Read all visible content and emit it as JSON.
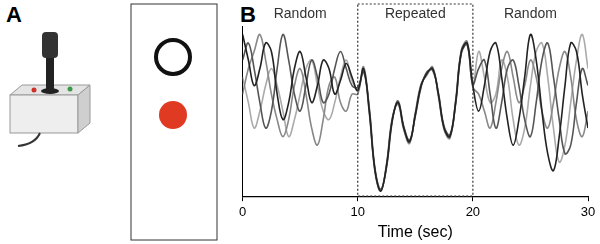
{
  "panel_labels": [
    "A",
    "B"
  ],
  "chart_data": {
    "type": "line",
    "x": [
      0,
      0.5,
      1,
      1.5,
      2,
      2.5,
      3,
      3.5,
      4,
      4.5,
      5,
      5.5,
      6,
      6.5,
      7,
      7.5,
      8,
      8.5,
      9,
      9.5,
      10,
      10.5,
      11,
      11.5,
      12,
      12.5,
      13,
      13.5,
      14,
      14.5,
      15,
      15.5,
      16,
      16.5,
      17,
      17.5,
      18,
      18.5,
      19,
      19.5,
      20,
      20.5,
      21,
      21.5,
      22,
      22.5,
      23,
      23.5,
      24,
      24.5,
      25,
      25.5,
      26,
      26.5,
      27,
      27.5,
      28,
      28.5,
      29,
      29.5,
      30
    ],
    "series": [
      {
        "color": "#222222",
        "values": [
          9.5,
          8.0,
          6.5,
          7.5,
          9.0,
          8.5,
          6.0,
          4.5,
          5.5,
          7.5,
          8.5,
          7.0,
          5.5,
          6.5,
          8.0,
          7.5,
          6.0,
          6.8,
          7.8,
          7.0,
          6.2,
          7.5,
          5.0,
          1.5,
          0.3,
          1.8,
          4.5,
          5.5,
          4.0,
          3.2,
          4.8,
          6.5,
          7.2,
          7.5,
          6.0,
          4.0,
          3.5,
          5.5,
          8.5,
          9.0,
          6.5,
          5.0,
          6.5,
          8.5,
          9.0,
          7.0,
          4.5,
          3.0,
          4.5,
          7.0,
          9.5,
          8.0,
          5.0,
          2.5,
          1.5,
          3.5,
          6.5,
          9.0,
          8.5,
          6.0,
          4.0
        ]
      },
      {
        "color": "#555555",
        "values": [
          8.0,
          9.0,
          7.5,
          5.5,
          4.0,
          5.0,
          7.5,
          9.5,
          8.0,
          6.0,
          5.0,
          6.5,
          8.0,
          7.0,
          5.5,
          6.0,
          7.5,
          8.5,
          7.5,
          6.5,
          6.4,
          7.3,
          5.2,
          1.6,
          0.4,
          1.7,
          4.4,
          5.6,
          4.1,
          3.3,
          4.7,
          6.4,
          7.3,
          7.4,
          6.1,
          4.1,
          3.6,
          5.4,
          8.4,
          8.9,
          6.6,
          7.5,
          8.0,
          6.0,
          4.0,
          5.5,
          7.5,
          8.0,
          6.5,
          4.5,
          3.5,
          5.5,
          8.0,
          9.0,
          7.0,
          4.5,
          2.5,
          3.0,
          5.5,
          7.5,
          6.5
        ]
      },
      {
        "color": "#888888",
        "values": [
          6.0,
          7.5,
          8.5,
          9.5,
          8.0,
          6.0,
          4.5,
          3.5,
          4.5,
          6.5,
          7.5,
          6.0,
          4.0,
          3.0,
          4.5,
          6.5,
          7.0,
          5.5,
          5.0,
          6.0,
          6.0,
          7.6,
          5.1,
          1.4,
          0.3,
          1.9,
          4.6,
          5.4,
          3.9,
          3.1,
          4.9,
          6.6,
          7.1,
          7.6,
          5.9,
          3.9,
          3.4,
          5.6,
          8.6,
          9.1,
          6.4,
          6.0,
          5.0,
          4.0,
          5.5,
          7.5,
          8.5,
          7.0,
          5.5,
          6.5,
          8.0,
          7.0,
          5.0,
          4.0,
          5.5,
          7.5,
          8.5,
          7.0,
          4.5,
          3.5,
          5.0
        ]
      },
      {
        "color": "#aaaaaa",
        "values": [
          7.0,
          5.5,
          4.0,
          5.0,
          6.5,
          7.5,
          6.5,
          5.0,
          3.5,
          4.5,
          6.0,
          7.5,
          8.0,
          6.5,
          5.0,
          4.5,
          5.5,
          7.0,
          8.0,
          6.8,
          6.3,
          7.4,
          4.9,
          1.5,
          0.4,
          1.8,
          4.5,
          5.5,
          4.0,
          3.2,
          4.8,
          6.5,
          7.2,
          7.5,
          6.0,
          4.0,
          3.5,
          5.5,
          8.5,
          9.0,
          6.5,
          8.5,
          7.0,
          5.5,
          6.0,
          8.0,
          7.0,
          4.5,
          3.0,
          4.0,
          6.5,
          8.5,
          9.0,
          7.0,
          4.0,
          2.0,
          3.0,
          5.5,
          8.0,
          9.5,
          7.5
        ]
      }
    ],
    "xlabel": "Time (sec)",
    "xlim": [
      0,
      30
    ],
    "xticks": [
      0,
      10,
      20,
      30
    ],
    "ylim": [
      0,
      10
    ],
    "yticks": [],
    "tick_labels": "x",
    "grid": false,
    "annotations": [
      {
        "text": "Random",
        "x": [
          0,
          10
        ]
      },
      {
        "text": "Repeated",
        "x": [
          10,
          20
        ],
        "line_style": "dotted"
      },
      {
        "text": "Random",
        "x": [
          20,
          30
        ]
      }
    ]
  }
}
